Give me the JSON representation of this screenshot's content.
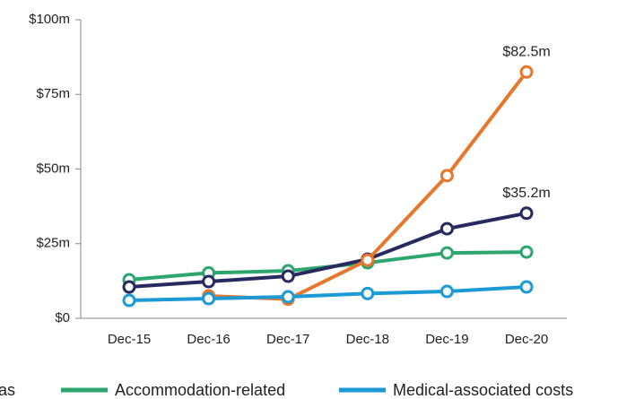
{
  "chart_data": {
    "type": "line",
    "categories": [
      "Dec-15",
      "Dec-16",
      "Dec-17",
      "Dec-18",
      "Dec-19",
      "Dec-20"
    ],
    "series": [
      {
        "name": "Accommodation-related",
        "color": "#2ca56e",
        "values": [
          12.9,
          15.2,
          15.9,
          18.6,
          21.9,
          22.2
        ]
      },
      {
        "color": "#272a5e",
        "values": [
          10.5,
          12.3,
          14.1,
          19.8,
          30,
          35.2
        ],
        "value_labels": [
          null,
          null,
          null,
          null,
          null,
          "$35.2m"
        ]
      },
      {
        "color": "#e8772e",
        "values": [
          null,
          7.5,
          6.4,
          19.5,
          47.8,
          82.5
        ],
        "value_labels": [
          null,
          null,
          null,
          null,
          null,
          "$82.5m"
        ]
      },
      {
        "name": "Medical-associated costs",
        "color": "#1c9ad6",
        "values": [
          6,
          6.6,
          7.2,
          8.3,
          9,
          10.5
        ]
      }
    ],
    "ylim": [
      0,
      100
    ],
    "yticks": [
      {
        "value": 0,
        "label": "$0"
      },
      {
        "value": 25,
        "label": "$25m"
      },
      {
        "value": 50,
        "label": "$50m"
      },
      {
        "value": 75,
        "label": "$75m"
      },
      {
        "value": 100,
        "label": "$100m"
      }
    ],
    "legend_clipped_text": "as"
  }
}
